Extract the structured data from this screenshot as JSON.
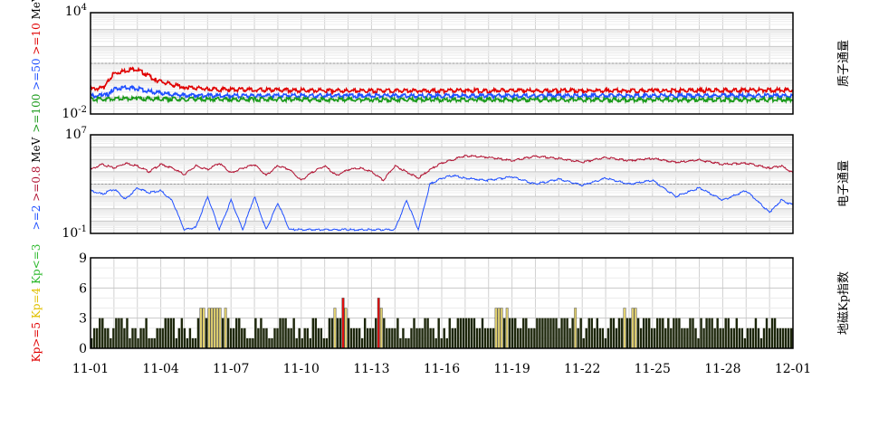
{
  "chart_data": [
    {
      "type": "line",
      "panel": "proton-flux",
      "right_label": "质子通量",
      "y_axis": {
        "scale": "log",
        "top_label": "10",
        "top_exp": "4",
        "bottom_label": "10",
        "bottom_exp": "-2",
        "ylim": [
          0.01,
          10000
        ]
      },
      "left_label_parts": [
        {
          "text": ">=100",
          "color": "#1a9a1a"
        },
        {
          "text": " >=50",
          "color": "#1f4fff"
        },
        {
          "text": " >=10",
          "color": "#e00000"
        },
        {
          "text": " MeV",
          "color": "#000000"
        }
      ],
      "threshold_line": 10,
      "grid": true,
      "series": [
        {
          "color": "#e00000",
          "x": [
            1,
            1.3,
            1.6,
            1.8,
            2.0,
            2.3,
            2.6,
            2.9,
            3.2,
            3.5,
            3.8,
            4.2,
            4.6,
            5.0,
            5.5,
            6,
            7,
            8,
            10,
            12,
            15,
            20,
            25,
            31
          ],
          "y": [
            0.3,
            0.32,
            0.35,
            1.2,
            2.5,
            3.2,
            4.0,
            4.8,
            3.0,
            1.8,
            1.0,
            0.7,
            0.5,
            0.4,
            0.35,
            0.3,
            0.28,
            0.27,
            0.25,
            0.24,
            0.24,
            0.24,
            0.24,
            0.26
          ]
        },
        {
          "color": "#1f4fff",
          "x": [
            1,
            1.5,
            1.8,
            2.0,
            2.5,
            3.0,
            3.5,
            4.0,
            4.5,
            5.0,
            6,
            8,
            12,
            20,
            31
          ],
          "y": [
            0.12,
            0.12,
            0.14,
            0.3,
            0.38,
            0.32,
            0.22,
            0.17,
            0.14,
            0.13,
            0.12,
            0.12,
            0.12,
            0.12,
            0.12
          ]
        },
        {
          "color": "#1a9a1a",
          "x": [
            1,
            2,
            3,
            5,
            8,
            12,
            20,
            31
          ],
          "y": [
            0.075,
            0.08,
            0.08,
            0.075,
            0.072,
            0.07,
            0.07,
            0.07
          ]
        }
      ]
    },
    {
      "type": "line",
      "panel": "electron-flux",
      "right_label": "电子通量",
      "y_axis": {
        "scale": "log",
        "top_label": "10",
        "top_exp": "7",
        "bottom_label": "10",
        "bottom_exp": "-1",
        "ylim": [
          0.1,
          10000000
        ]
      },
      "left_label_parts": [
        {
          "text": ">=2",
          "color": "#1f4fff"
        },
        {
          "text": " >=0.8",
          "color": "#b01030"
        },
        {
          "text": " MeV",
          "color": "#000000"
        }
      ],
      "threshold_line": 1000,
      "grid": true,
      "series": [
        {
          "color": "#b01030",
          "x": [
            1,
            1.5,
            2,
            2.5,
            3,
            3.5,
            4,
            4.5,
            5,
            5.5,
            6,
            6.5,
            7,
            7.5,
            8,
            8.5,
            9,
            9.5,
            10,
            10.5,
            11,
            11.5,
            12,
            12.5,
            13,
            13.5,
            14,
            14.5,
            15,
            15.5,
            16,
            16.5,
            17,
            18,
            19,
            20,
            21,
            22,
            23,
            24,
            25,
            26,
            27,
            28,
            29,
            30,
            30.5,
            31
          ],
          "y": [
            15000,
            40000,
            20000,
            50000,
            30000,
            10000,
            40000,
            20000,
            6000,
            30000,
            15000,
            50000,
            8000,
            20000,
            40000,
            5000,
            30000,
            15000,
            2000,
            10000,
            30000,
            5000,
            15000,
            20000,
            10000,
            2000,
            30000,
            10000,
            3000,
            15000,
            50000,
            100000,
            200000,
            150000,
            80000,
            180000,
            120000,
            60000,
            150000,
            80000,
            120000,
            60000,
            90000,
            40000,
            50000,
            20000,
            30000,
            8000
          ]
        },
        {
          "color": "#1f4fff",
          "x": [
            1,
            1.5,
            2,
            2.5,
            3,
            3.5,
            4,
            4.5,
            5,
            5.5,
            6,
            6.5,
            7,
            7.5,
            8,
            8.5,
            9,
            9.5,
            10,
            10.5,
            11,
            11.5,
            12,
            12.5,
            13,
            13.5,
            14,
            14.5,
            15,
            15.5,
            16,
            16.5,
            17,
            18,
            19,
            20,
            21,
            22,
            23,
            24,
            25,
            26,
            27,
            28,
            29,
            30,
            30.5,
            31
          ],
          "y": [
            300,
            150,
            400,
            60,
            500,
            200,
            300,
            40,
            0.2,
            0.3,
            100,
            0.2,
            50,
            0.2,
            100,
            0.2,
            30,
            0.2,
            0.2,
            0.2,
            0.2,
            0.2,
            0.2,
            0.2,
            0.2,
            0.2,
            0.2,
            50,
            0.2,
            1000,
            3000,
            5000,
            3000,
            2000,
            4000,
            1000,
            2500,
            800,
            3000,
            1000,
            2000,
            100,
            500,
            50,
            300,
            5,
            50,
            20
          ]
        }
      ]
    },
    {
      "type": "bar",
      "panel": "kp-index",
      "right_label": "地磁Kp指数",
      "y_axis": {
        "ticks": [
          "0",
          "3",
          "6",
          "9"
        ],
        "ylim": [
          0,
          9
        ]
      },
      "left_label_parts": [
        {
          "text": "Kp>=5",
          "color": "#e00000"
        },
        {
          "text": " Kp=4",
          "color": "#e0c000"
        },
        {
          "text": " Kp<=3",
          "color": "#2ab82a"
        }
      ],
      "bar_colors": {
        "low": "#1c260a",
        "mid": "#e0d070",
        "high": "#e01010"
      },
      "grid": true,
      "values": [
        1,
        2,
        2,
        3,
        3,
        2,
        2,
        1,
        2,
        3,
        3,
        3,
        2,
        3,
        1,
        2,
        2,
        1,
        2,
        2,
        3,
        1,
        1,
        1,
        2,
        2,
        2,
        3,
        3,
        3,
        3,
        1,
        2,
        3,
        2,
        1,
        2,
        1,
        1,
        3,
        4,
        4,
        3,
        4,
        4,
        4,
        4,
        4,
        3,
        4,
        3,
        2,
        2,
        3,
        3,
        2,
        2,
        1,
        1,
        1,
        3,
        2,
        3,
        2,
        2,
        1,
        1,
        2,
        2,
        3,
        3,
        3,
        2,
        2,
        3,
        1,
        2,
        1,
        2,
        2,
        1,
        3,
        3,
        2,
        2,
        1,
        1,
        3,
        3,
        4,
        3,
        3,
        5,
        4,
        3,
        2,
        2,
        2,
        2,
        1,
        3,
        2,
        2,
        2,
        3,
        5,
        4,
        3,
        2,
        2,
        2,
        2,
        3,
        1,
        2,
        1,
        1,
        2,
        3,
        2,
        2,
        2,
        3,
        3,
        2,
        2,
        1,
        3,
        1,
        2,
        1,
        3,
        2,
        2,
        3,
        3,
        3,
        3,
        3,
        3,
        3,
        2,
        2,
        3,
        2,
        2,
        2,
        2,
        4,
        4,
        4,
        3,
        4,
        3,
        3,
        3,
        2,
        2,
        3,
        3,
        2,
        2,
        2,
        3,
        3,
        3,
        3,
        3,
        3,
        3,
        3,
        2,
        3,
        3,
        3,
        2,
        3,
        4,
        2,
        3,
        1,
        2,
        3,
        3,
        2,
        3,
        2,
        2,
        1,
        2,
        3,
        3,
        2,
        3,
        3,
        4,
        3,
        3,
        4,
        4,
        3,
        2,
        3,
        3,
        3,
        2,
        2,
        3,
        3,
        3,
        2,
        3,
        2,
        3,
        3,
        3,
        2,
        2,
        2,
        3,
        3,
        2,
        1,
        3,
        2,
        3,
        3,
        3,
        2,
        3,
        2,
        2,
        3,
        3,
        2,
        2,
        3,
        2,
        2,
        1,
        2,
        2,
        2,
        3,
        2,
        1,
        2,
        3,
        2,
        3,
        3,
        2,
        2,
        2,
        2,
        2,
        2
      ]
    }
  ],
  "x_axis": {
    "ticks": [
      "11-01",
      "11-04",
      "11-07",
      "11-10",
      "11-13",
      "11-16",
      "11-19",
      "11-22",
      "11-25",
      "11-28",
      "12-01"
    ],
    "days": [
      1,
      4,
      7,
      10,
      13,
      16,
      19,
      22,
      25,
      28,
      31
    ]
  }
}
